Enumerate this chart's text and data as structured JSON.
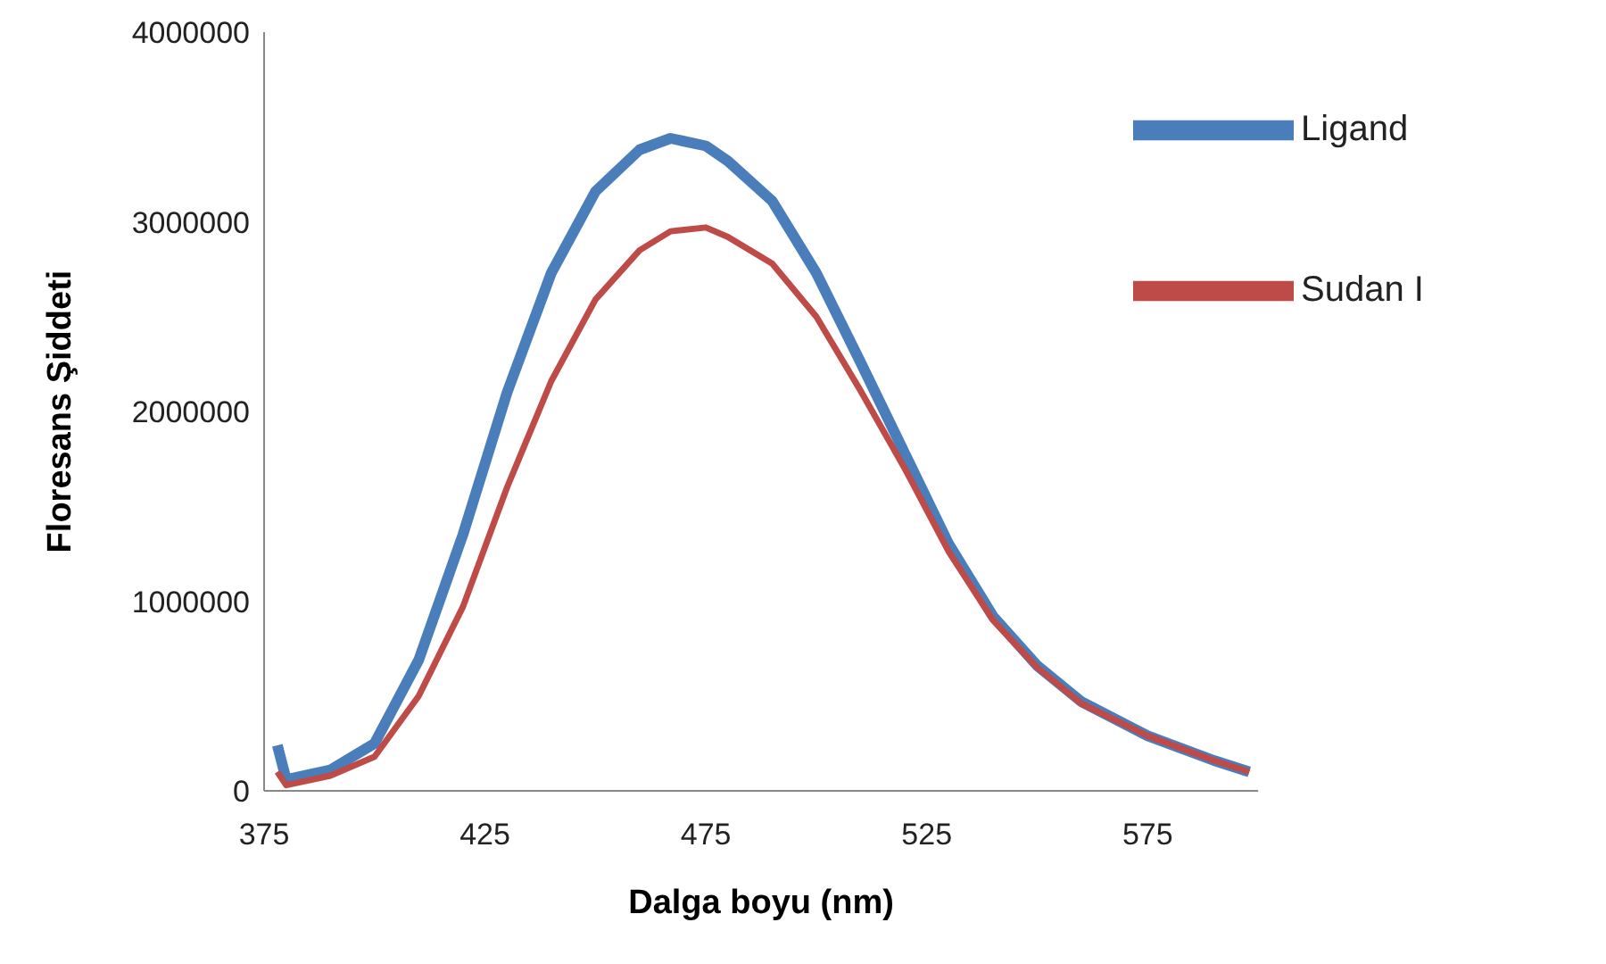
{
  "chart_data": {
    "type": "line",
    "xlabel": "Dalga boyu (nm)",
    "ylabel": "Floresans  Şiddeti",
    "xlim": [
      375,
      600
    ],
    "xticks": [
      375,
      425,
      475,
      525,
      575
    ],
    "ylim": [
      0,
      4000000
    ],
    "yticks": [
      0,
      1000000,
      2000000,
      3000000,
      4000000
    ],
    "grid": false,
    "legend": "top right",
    "marker": "none",
    "line_style": "solid",
    "x": [
      378,
      380,
      390,
      400,
      410,
      420,
      430,
      440,
      450,
      460,
      467,
      475,
      480,
      490,
      500,
      510,
      520,
      530,
      540,
      550,
      560,
      575,
      590,
      598
    ],
    "series": [
      {
        "name": "Ligand",
        "color": "#4a7ebb",
        "values": [
          240000,
          60000,
          110000,
          250000,
          690000,
          1350000,
          2100000,
          2730000,
          3160000,
          3380000,
          3440000,
          3400000,
          3320000,
          3110000,
          2730000,
          2260000,
          1780000,
          1300000,
          920000,
          660000,
          470000,
          290000,
          160000,
          100000
        ]
      },
      {
        "name": "Sudan I",
        "color": "#be4b48",
        "values": [
          100000,
          30000,
          80000,
          180000,
          500000,
          970000,
          1600000,
          2160000,
          2590000,
          2850000,
          2950000,
          2970000,
          2920000,
          2780000,
          2500000,
          2110000,
          1700000,
          1260000,
          900000,
          650000,
          460000,
          290000,
          160000,
          100000
        ]
      }
    ]
  }
}
